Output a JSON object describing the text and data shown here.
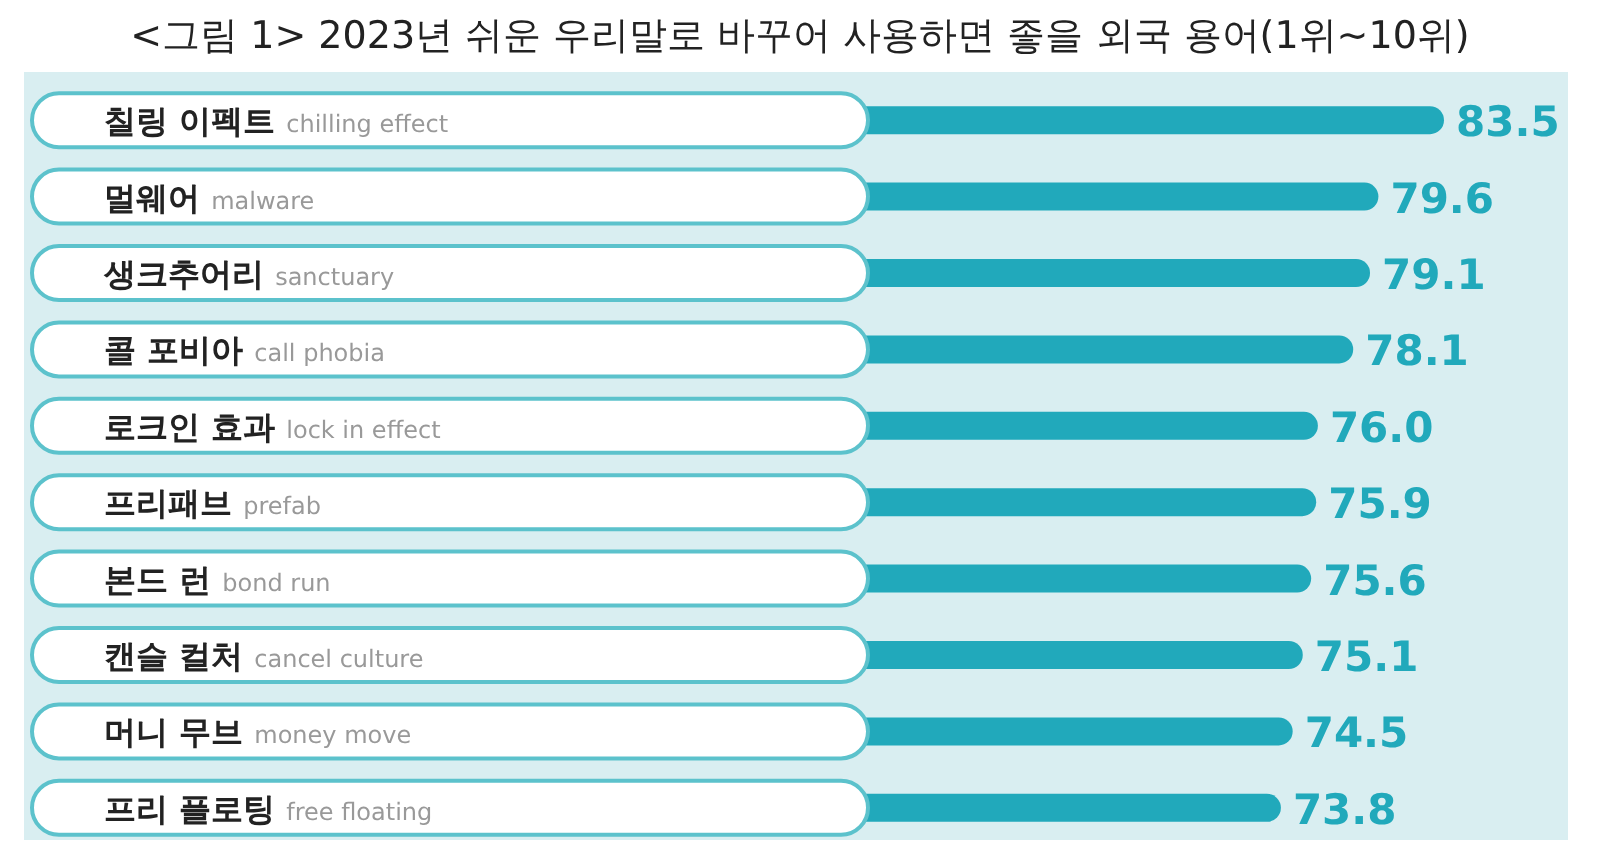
{
  "chart_data": {
    "type": "bar",
    "orientation": "horizontal",
    "title": "<그림 1> 2023년 쉬운 우리말로 바꾸어 사용하면 좋을 외국 용어(1위~10위)",
    "categories": [
      "칠링 이펙트 chilling effect",
      "멀웨어 malware",
      "생크추어리 sanctuary",
      "콜 포비아 call phobia",
      "로크인 효과 lock in effect",
      "프리패브 prefab",
      "본드 런 bond run",
      "캔슬 컬처 cancel culture",
      "머니 무브 money move",
      "프리 플로팅 free floating"
    ],
    "values": [
      83.5,
      79.6,
      79.1,
      78.1,
      76.0,
      75.9,
      75.6,
      75.1,
      74.5,
      73.8
    ],
    "value_labels": [
      "83.5",
      "79.6",
      "79.1",
      "78.1",
      "76.0",
      "75.9",
      "75.6",
      "75.1",
      "74.5",
      "73.8"
    ],
    "color": "#21a9bb",
    "relative": false
  }
}
